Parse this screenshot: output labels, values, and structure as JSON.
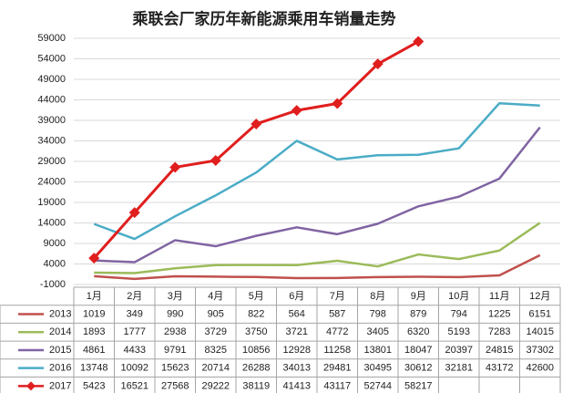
{
  "chart_data": {
    "type": "line",
    "title": "乘联会厂家历年新能源乘用车销量走势",
    "categories": [
      "1月",
      "2月",
      "3月",
      "4月",
      "5月",
      "6月",
      "7月",
      "8月",
      "9月",
      "10月",
      "11月",
      "12月"
    ],
    "ylim": [
      -1000,
      59000
    ],
    "yticks": [
      -1000,
      4000,
      9000,
      14000,
      19000,
      24000,
      29000,
      34000,
      39000,
      44000,
      49000,
      54000,
      59000
    ],
    "grid": true,
    "series": [
      {
        "name": "2013",
        "color": "#c0504d",
        "values": [
          1019,
          349,
          990,
          905,
          822,
          564,
          587,
          798,
          879,
          794,
          1225,
          6151
        ]
      },
      {
        "name": "2014",
        "color": "#9bbb59",
        "values": [
          1893,
          1777,
          2938,
          3729,
          3750,
          3721,
          4772,
          3405,
          6320,
          5193,
          7283,
          14015
        ]
      },
      {
        "name": "2015",
        "color": "#8064a2",
        "values": [
          4861,
          4433,
          9791,
          8325,
          10856,
          12928,
          11258,
          13801,
          18047,
          20397,
          24815,
          37302
        ]
      },
      {
        "name": "2016",
        "color": "#4bacc6",
        "values": [
          13748,
          10092,
          15623,
          20714,
          26288,
          34013,
          29481,
          30495,
          30612,
          32181,
          43172,
          42600
        ]
      },
      {
        "name": "2017",
        "color": "#e01e1e",
        "marker": "diamond",
        "values": [
          5423,
          16521,
          27568,
          29222,
          38119,
          41413,
          43117,
          52744,
          58217,
          null,
          null,
          null
        ]
      }
    ]
  }
}
